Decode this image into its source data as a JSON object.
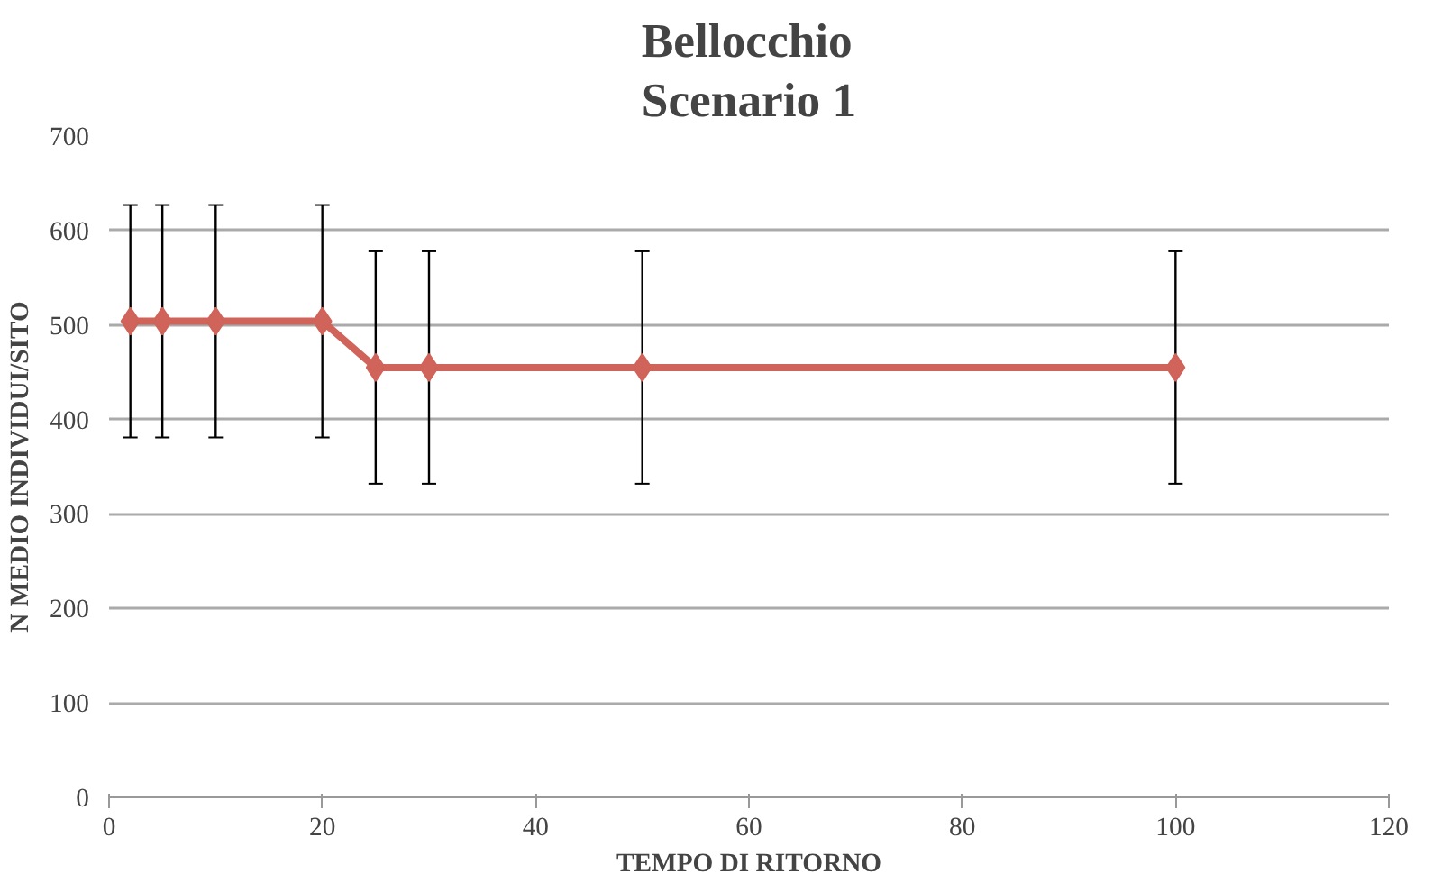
{
  "chart_data": {
    "type": "line",
    "title": "Bellocchio\nScenario 1",
    "xlabel": "TEMPO DI RITORNO",
    "ylabel": "N MEDIO INDIVIDUI/SITO",
    "x": [
      2,
      5,
      10,
      20,
      25,
      30,
      50,
      100
    ],
    "series": [
      {
        "color": "#d0635a",
        "values": [
          504,
          504,
          504,
          504,
          455,
          455,
          455,
          455
        ],
        "errors": [
          123,
          123,
          123,
          123,
          123,
          123,
          123,
          123
        ]
      }
    ],
    "xlim": [
      0,
      120
    ],
    "xticks": [
      0,
      20,
      40,
      60,
      80,
      100,
      120
    ],
    "ylim": [
      0,
      700
    ],
    "yticks": [
      0,
      100,
      200,
      300,
      400,
      500,
      600,
      700
    ],
    "grid": "y",
    "marker": "diamond",
    "line_style": "solid"
  }
}
